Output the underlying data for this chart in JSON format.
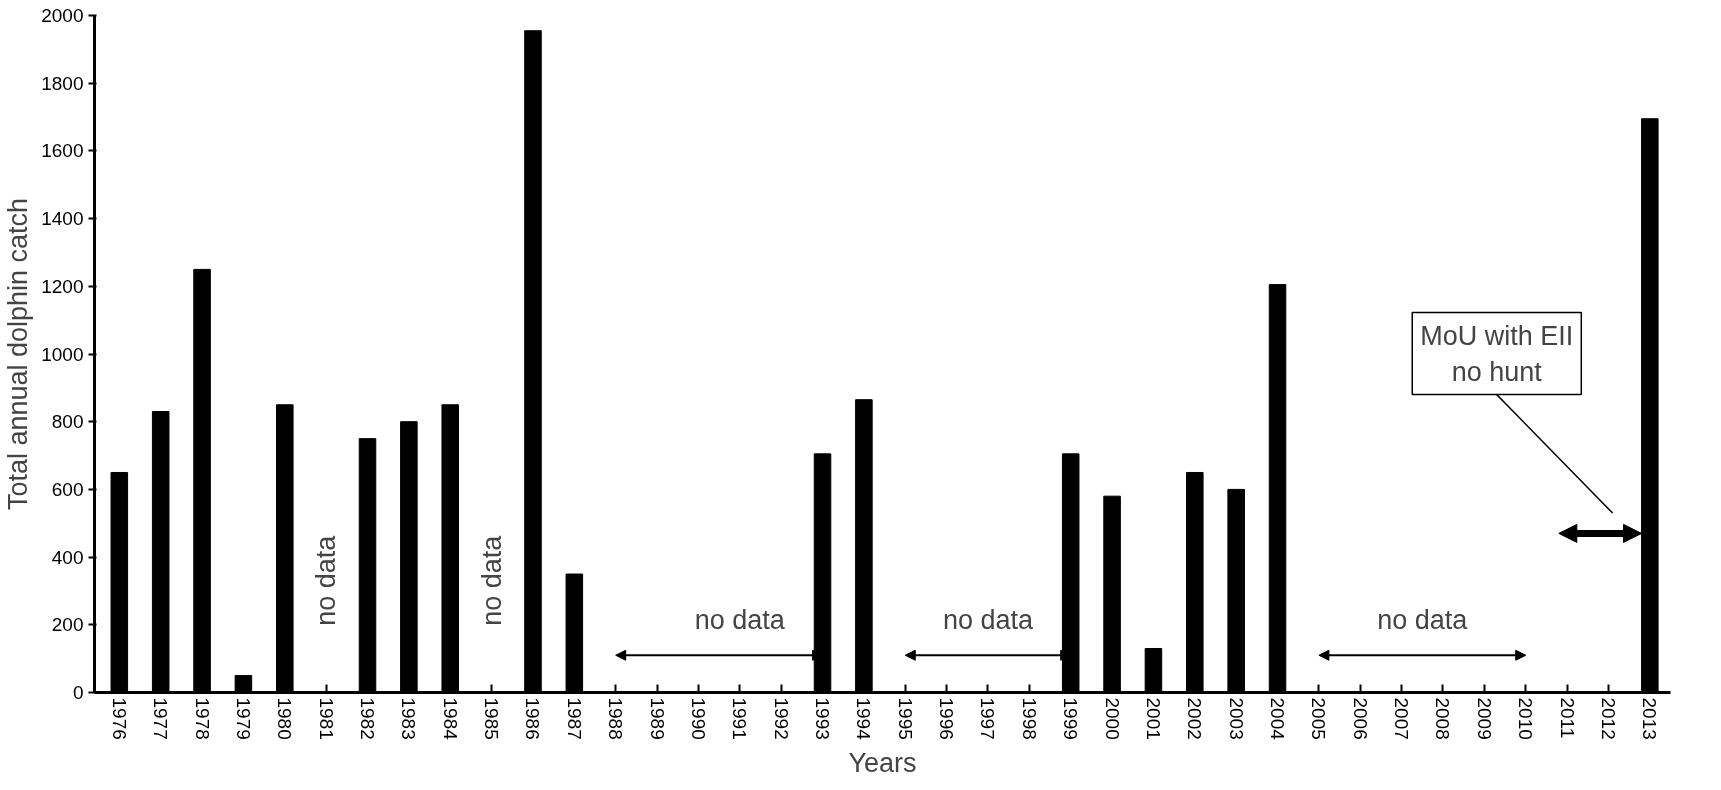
{
  "chart_data": {
    "type": "bar",
    "xlabel": "Years",
    "ylabel": "Total annual dolphin catch",
    "categories": [
      "1976",
      "1977",
      "1978",
      "1979",
      "1980",
      "1981",
      "1982",
      "1983",
      "1984",
      "1985",
      "1986",
      "1987",
      "1988",
      "1989",
      "1990",
      "1991",
      "1992",
      "1993",
      "1994",
      "1995",
      "1996",
      "1997",
      "1998",
      "1999",
      "2000",
      "2001",
      "2002",
      "2003",
      "2004",
      "2005",
      "2006",
      "2007",
      "2008",
      "2009",
      "2010",
      "2011",
      "2012",
      "2013"
    ],
    "values": [
      650,
      830,
      1250,
      50,
      850,
      null,
      750,
      800,
      850,
      null,
      1955,
      350,
      null,
      null,
      null,
      null,
      null,
      705,
      865,
      null,
      null,
      null,
      null,
      705,
      580,
      130,
      650,
      600,
      1205,
      null,
      null,
      null,
      null,
      null,
      null,
      null,
      null,
      1695
    ],
    "color": "#000000",
    "ylim": [
      0,
      2000
    ],
    "yticks": [
      0,
      200,
      400,
      600,
      800,
      1000,
      1200,
      1400,
      1600,
      1800,
      2000
    ],
    "grid": false,
    "annotations": [
      "no data",
      "no data",
      "no data",
      "no data",
      "no data",
      "MoU with EII\nno hunt"
    ]
  }
}
